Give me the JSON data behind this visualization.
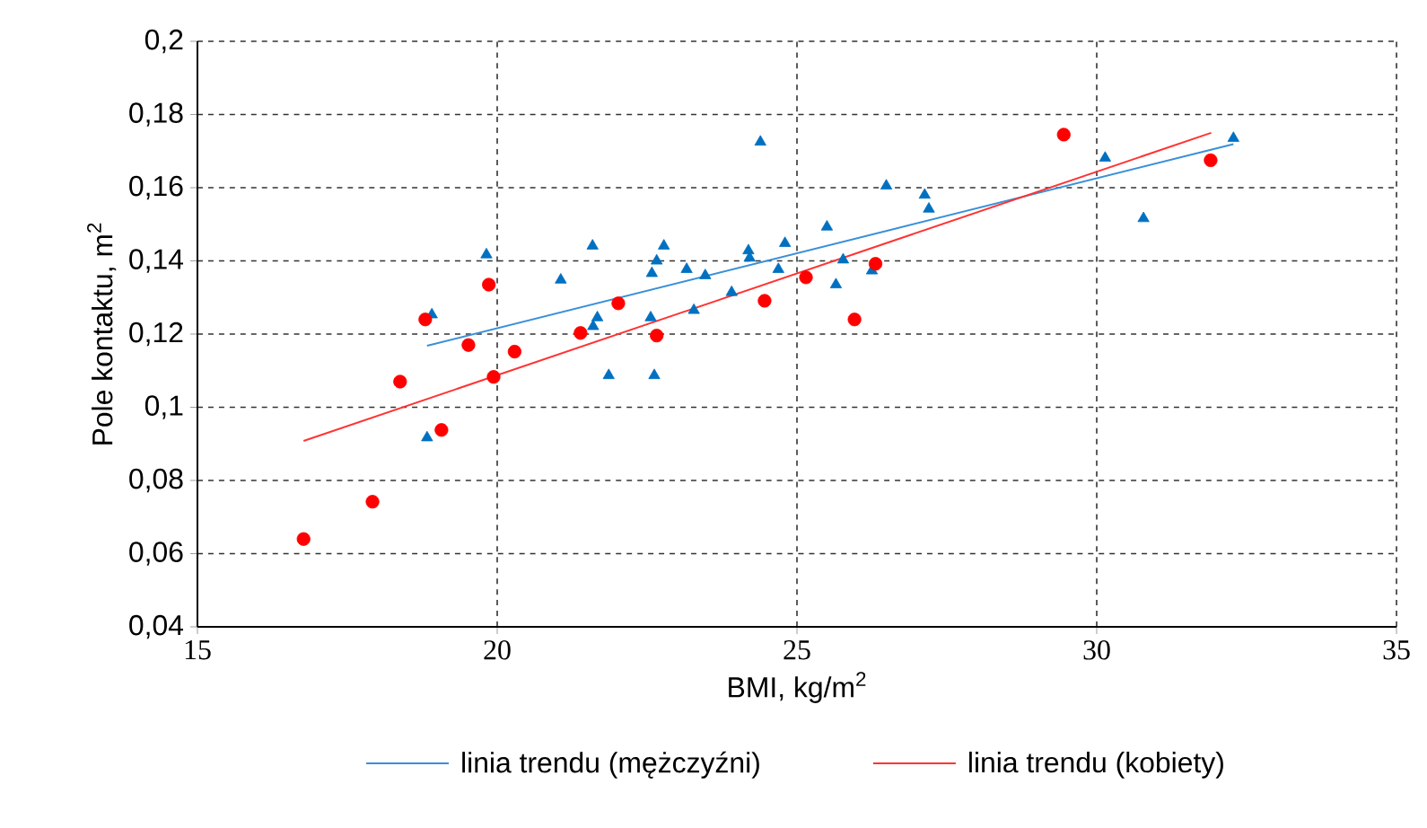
{
  "chart_data": {
    "type": "scatter",
    "xlabel": "BMI, kg/m$^{2}$",
    "ylabel": "Pole kontaktu, m$^{2}$",
    "xlim": [
      15,
      35
    ],
    "ylim": [
      0.04,
      0.2
    ],
    "xticks": [
      15,
      20,
      25,
      30,
      35
    ],
    "yticks": [
      {
        "value": 0.04,
        "label": "0,04"
      },
      {
        "value": 0.06,
        "label": "0,06"
      },
      {
        "value": 0.08,
        "label": "0,08"
      },
      {
        "value": 0.1,
        "label": "0,1"
      },
      {
        "value": 0.12,
        "label": "0,12"
      },
      {
        "value": 0.14,
        "label": "0,14"
      },
      {
        "value": 0.16,
        "label": "0,16"
      },
      {
        "value": 0.18,
        "label": "0,18"
      },
      {
        "value": 0.2,
        "label": "0,2"
      }
    ],
    "grid": true,
    "legend": "bottom",
    "series": [
      {
        "type": "scatter",
        "marker": "triangle",
        "color": "#0070c0",
        "x": [
          18.83,
          18.91,
          19.82,
          21.06,
          21.59,
          21.67,
          21.6,
          21.86,
          22.56,
          22.58,
          22.62,
          22.66,
          22.78,
          23.16,
          23.28,
          23.47,
          23.91,
          24.19,
          24.21,
          24.39,
          24.69,
          24.8,
          25.5,
          25.65,
          25.77,
          26.25,
          26.49,
          27.13,
          27.2,
          30.14,
          30.78,
          32.28
        ],
        "values": [
          0.0917,
          0.1253,
          0.1417,
          0.1348,
          0.1441,
          0.1245,
          0.1221,
          0.1087,
          0.1245,
          0.1366,
          0.1087,
          0.14,
          0.1441,
          0.1377,
          0.1265,
          0.136,
          0.1314,
          0.1428,
          0.1408,
          0.1725,
          0.1377,
          0.1448,
          0.1493,
          0.1335,
          0.1403,
          0.1373,
          0.1605,
          0.158,
          0.1542,
          0.1681,
          0.1516,
          0.1735
        ]
      },
      {
        "type": "scatter",
        "marker": "circle",
        "color": "#ff0000",
        "x": [
          16.77,
          17.92,
          18.38,
          18.8,
          19.07,
          19.52,
          19.86,
          19.94,
          20.29,
          21.39,
          22.02,
          22.66,
          24.46,
          25.15,
          25.96,
          26.31,
          29.45,
          31.9
        ],
        "values": [
          0.064,
          0.0742,
          0.107,
          0.124,
          0.0938,
          0.117,
          0.1335,
          0.1083,
          0.1152,
          0.1203,
          0.1284,
          0.1196,
          0.1291,
          0.1355,
          0.124,
          0.1392,
          0.1745,
          0.1675
        ]
      },
      {
        "type": "line",
        "name": "linia trendu (mężczyźni)",
        "color": "#3a8fd8",
        "x": [
          18.83,
          32.28
        ],
        "values": [
          0.1168,
          0.1719
        ]
      },
      {
        "type": "line",
        "name": "linia trendu (kobiety)",
        "color": "#ff3333",
        "x": [
          16.77,
          31.91
        ],
        "values": [
          0.0908,
          0.175
        ]
      }
    ]
  }
}
